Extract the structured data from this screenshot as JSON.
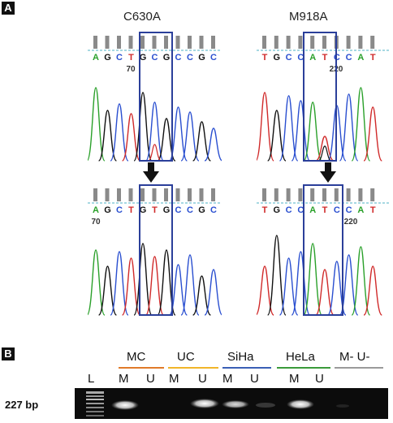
{
  "panel_a": {
    "letter": "A",
    "left": {
      "title": "C630A",
      "top": {
        "bases": [
          "A",
          "G",
          "C",
          "T",
          "G",
          "C",
          "G",
          "C",
          "C",
          "G",
          "C"
        ],
        "position": "70"
      },
      "bottom": {
        "bases": [
          "A",
          "G",
          "C",
          "T",
          "G",
          "T",
          "G",
          "C",
          "C",
          "G",
          "C"
        ],
        "position": "70"
      }
    },
    "right": {
      "title": "M918A",
      "top": {
        "bases": [
          "T",
          "G",
          "C",
          "C",
          "A",
          "T",
          "C",
          "C",
          "A",
          "T"
        ],
        "position": "220"
      },
      "bottom": {
        "bases": [
          "T",
          "G",
          "C",
          "C",
          "A",
          "T",
          "C",
          "C",
          "A",
          "T"
        ],
        "position": "220"
      }
    }
  },
  "panel_b": {
    "letter": "B",
    "groups": [
      {
        "label": "MC",
        "color": "#e07a2a"
      },
      {
        "label": "UC",
        "color": "#f1b52a"
      },
      {
        "label": "SiHa",
        "color": "#3a5fb5"
      },
      {
        "label": "HeLa",
        "color": "#3a9a3a"
      },
      {
        "label": "M- U-",
        "color": "#9a9a9a"
      }
    ],
    "lanes": [
      "L",
      "M",
      "U",
      "M",
      "U",
      "M",
      "U",
      "M",
      "U"
    ],
    "band_size": "227 bp"
  },
  "colors": {
    "A": "#2aa02a",
    "C": "#2a4fd0",
    "G": "#111111",
    "T": "#d02a2a",
    "box": "#2b3f9a"
  }
}
